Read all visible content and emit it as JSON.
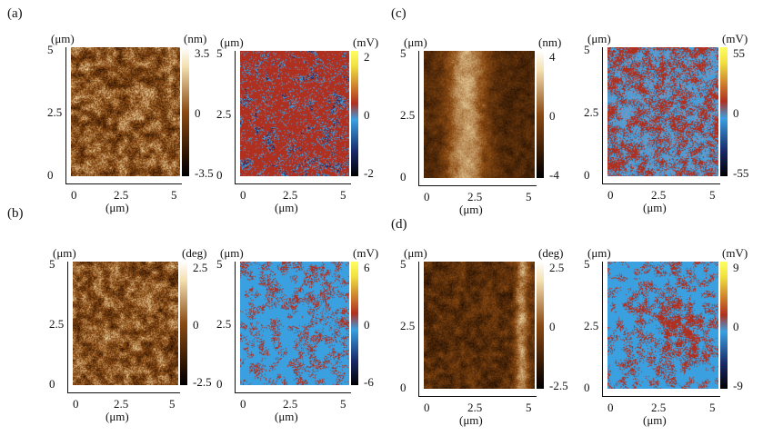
{
  "panel_labels": [
    "(a)",
    "(b)",
    "(c)",
    "(d)"
  ],
  "axis_unit": "(μm)",
  "x_ticks": [
    "0",
    "2.5",
    "5"
  ],
  "y_ticks": [
    "5",
    "2.5",
    "0"
  ],
  "panels": [
    {
      "label": "(a)",
      "kind": "height",
      "unit": "(nm)",
      "cbar_ticks": [
        "3.5",
        "0",
        "-3.5"
      ],
      "cmap": "afm"
    },
    {
      "label": "(a)",
      "kind": "kpfm",
      "unit": "(mV)",
      "cbar_ticks": [
        "2",
        "0",
        "-2"
      ],
      "cmap": "kpfm-red"
    },
    {
      "label": "(b)",
      "kind": "height",
      "unit": "(nm)",
      "cbar_ticks": [
        "4",
        "0",
        "-4"
      ],
      "cmap": "afm"
    },
    {
      "label": "(b)",
      "kind": "kpfm",
      "unit": "(mV)",
      "cbar_ticks": [
        "55",
        "0",
        "-55"
      ],
      "cmap": "kpfm-mixed"
    },
    {
      "label": "(c)",
      "kind": "phase",
      "unit": "(deg)",
      "cbar_ticks": [
        "2.5",
        "0",
        "-2.5"
      ],
      "cmap": "afm"
    },
    {
      "label": "(c)",
      "kind": "kpfm",
      "unit": "(mV)",
      "cbar_ticks": [
        "6",
        "0",
        "-6"
      ],
      "cmap": "kpfm-blue"
    },
    {
      "label": "(d)",
      "kind": "phase",
      "unit": "(deg)",
      "cbar_ticks": [
        "2.5",
        "0",
        "-2.5"
      ],
      "cmap": "afm"
    },
    {
      "label": "(d)",
      "kind": "kpfm",
      "unit": "(mV)",
      "cbar_ticks": [
        "9",
        "0",
        "-9"
      ],
      "cmap": "kpfm-blue"
    }
  ],
  "colors": {
    "afm_dark": "#1a0a00",
    "afm_mid": "#8b4a12",
    "afm_light": "#f4e0b0",
    "kpfm_red": "#b03020",
    "kpfm_blue": "#3aa0e0",
    "kpfm_navy": "#1a2a6a",
    "kpfm_yellow": "#f0e040"
  }
}
